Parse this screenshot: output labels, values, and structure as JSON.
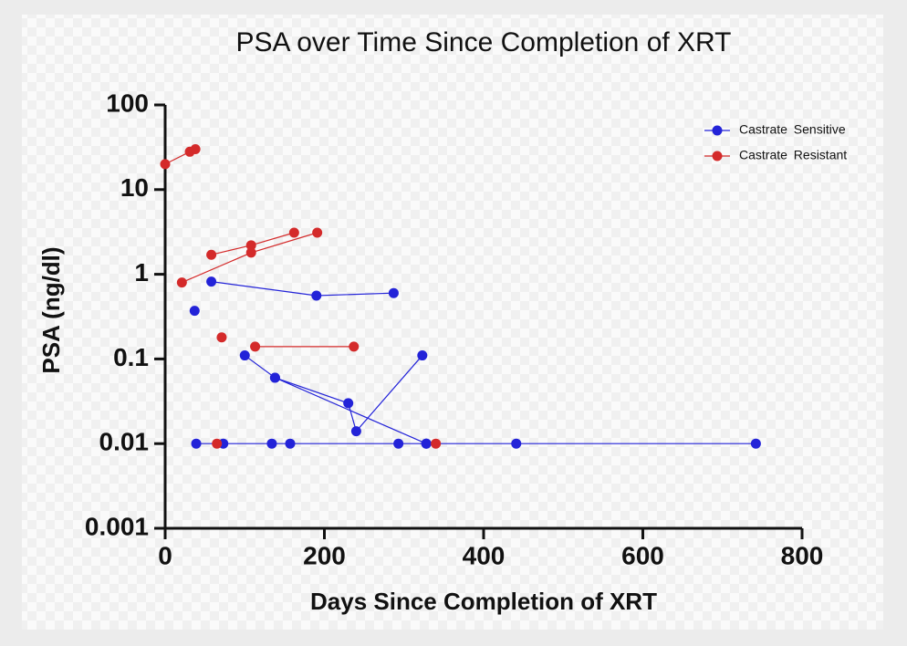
{
  "chart_data": {
    "type": "line",
    "title": "PSA over Time Since Completion of XRT",
    "x_label": "Days Since Completion of XRT",
    "y_label": "PSA (ng/dl)",
    "xlim": [
      0,
      800
    ],
    "xticks": [
      0,
      200,
      400,
      600,
      800
    ],
    "ylim": [
      0.001,
      100
    ],
    "yticks": [
      0.001,
      0.01,
      0.1,
      1,
      10,
      100
    ],
    "y_log": true,
    "legend": "top-right",
    "series": [
      {
        "name": "Castrate Sensitive",
        "color": "#2323d8",
        "x": [
          58,
          190,
          287,
          null,
          37,
          null,
          100,
          138,
          230,
          240,
          323,
          null,
          138,
          328,
          null,
          39,
          73,
          134,
          157,
          293,
          328,
          441,
          742
        ],
        "values": [
          0.82,
          0.56,
          0.6,
          null,
          0.37,
          null,
          0.11,
          0.06,
          0.03,
          0.014,
          0.11,
          null,
          0.06,
          0.01,
          null,
          0.01,
          0.01,
          0.01,
          0.01,
          0.01,
          0.01,
          0.01,
          0.01
        ]
      },
      {
        "name": "Castrate Resistant",
        "color": "#d42a2a",
        "x": [
          0,
          31,
          38,
          null,
          21,
          108,
          191,
          null,
          58,
          108,
          162,
          null,
          71,
          null,
          113,
          237,
          null,
          65,
          null,
          340
        ],
        "values": [
          20,
          28,
          30,
          null,
          0.8,
          1.8,
          3.1,
          null,
          1.7,
          2.2,
          3.1,
          null,
          0.18,
          null,
          0.14,
          0.14,
          null,
          0.01,
          null,
          0.01
        ]
      }
    ]
  }
}
